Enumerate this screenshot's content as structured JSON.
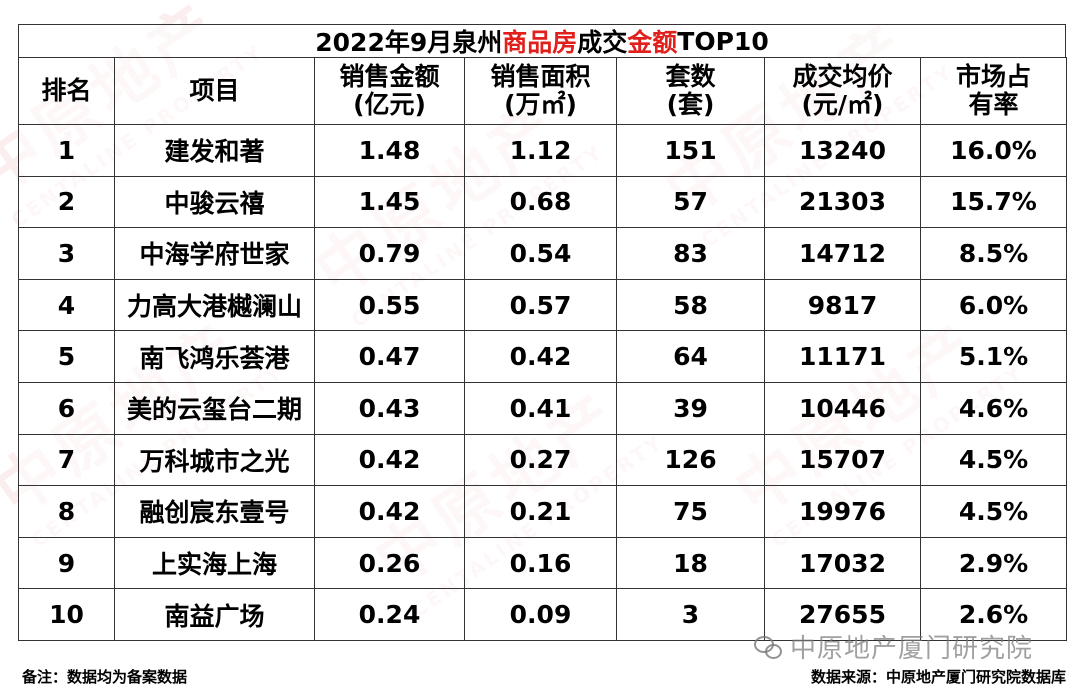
{
  "title": {
    "part1": "2022年9月泉州",
    "part2": "商品房",
    "part3": "成交",
    "part4": "金额",
    "part5": "TOP10",
    "highlight_color": "#e0201c"
  },
  "headers": {
    "rank": "排名",
    "project": "项目",
    "amount_l1": "销售金额",
    "amount_l2": "(亿元)",
    "area_l1": "销售面积",
    "area_l2": "(万㎡)",
    "units_l1": "套数",
    "units_l2": "(套)",
    "price_l1": "成交均价",
    "price_l2": "(元/㎡)",
    "share_l1": "市场占",
    "share_l2": "有率"
  },
  "rows": [
    {
      "rank": "1",
      "project": "建发和著",
      "amount": "1.48",
      "area": "1.12",
      "units": "151",
      "price": "13240",
      "share": "16.0%"
    },
    {
      "rank": "2",
      "project": "中骏云禧",
      "amount": "1.45",
      "area": "0.68",
      "units": "57",
      "price": "21303",
      "share": "15.7%"
    },
    {
      "rank": "3",
      "project": "中海学府世家",
      "amount": "0.79",
      "area": "0.54",
      "units": "83",
      "price": "14712",
      "share": "8.5%"
    },
    {
      "rank": "4",
      "project": "力高大港樾澜山",
      "amount": "0.55",
      "area": "0.57",
      "units": "58",
      "price": "9817",
      "share": "6.0%"
    },
    {
      "rank": "5",
      "project": "南飞鸿乐荟港",
      "amount": "0.47",
      "area": "0.42",
      "units": "64",
      "price": "11171",
      "share": "5.1%"
    },
    {
      "rank": "6",
      "project": "美的云玺台二期",
      "amount": "0.43",
      "area": "0.41",
      "units": "39",
      "price": "10446",
      "share": "4.6%"
    },
    {
      "rank": "7",
      "project": "万科城市之光",
      "amount": "0.42",
      "area": "0.27",
      "units": "126",
      "price": "15707",
      "share": "4.5%"
    },
    {
      "rank": "8",
      "project": "融创宸东壹号",
      "amount": "0.42",
      "area": "0.21",
      "units": "75",
      "price": "19976",
      "share": "4.5%"
    },
    {
      "rank": "9",
      "project": "上实海上海",
      "amount": "0.26",
      "area": "0.16",
      "units": "18",
      "price": "17032",
      "share": "2.9%"
    },
    {
      "rank": "10",
      "project": "南益广场",
      "amount": "0.24",
      "area": "0.09",
      "units": "3",
      "price": "27655",
      "share": "2.6%"
    }
  ],
  "footer": {
    "note": "备注：数据均为备案数据",
    "source": "数据来源：中原地产厦门研究院数据库"
  },
  "brand": {
    "account": "中原地产厦门研究院",
    "icon": "wechat-icon"
  },
  "watermark": {
    "main": "中原地产",
    "sub": "CENTALINE PROPERTY"
  }
}
